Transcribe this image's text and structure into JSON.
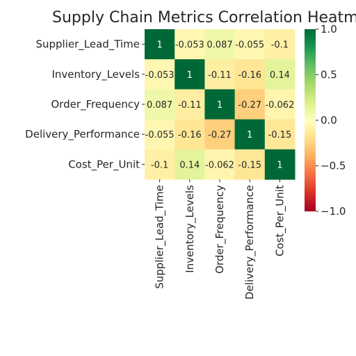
{
  "chart_data": {
    "type": "heatmap",
    "title": "Supply Chain Metrics Correlation Heatmap",
    "x_categories": [
      "Supplier_Lead_Time",
      "Inventory_Levels",
      "Order_Frequency",
      "Delivery_Performance",
      "Cost_Per_Unit"
    ],
    "y_categories": [
      "Supplier_Lead_Time",
      "Inventory_Levels",
      "Order_Frequency",
      "Delivery_Performance",
      "Cost_Per_Unit"
    ],
    "values": [
      [
        1,
        -0.053,
        0.087,
        -0.055,
        -0.1
      ],
      [
        -0.053,
        1,
        -0.11,
        -0.16,
        0.14
      ],
      [
        0.087,
        -0.11,
        1,
        -0.27,
        -0.062
      ],
      [
        -0.055,
        -0.16,
        -0.27,
        1,
        -0.15
      ],
      [
        -0.1,
        0.14,
        -0.062,
        -0.15,
        1
      ]
    ],
    "cell_labels": [
      [
        "1",
        "-0.053",
        "0.087",
        "-0.055",
        "-0.1"
      ],
      [
        "-0.053",
        "1",
        "-0.11",
        "-0.16",
        "0.14"
      ],
      [
        "0.087",
        "-0.11",
        "1",
        "-0.27",
        "-0.062"
      ],
      [
        "-0.055",
        "-0.16",
        "-0.27",
        "1",
        "-0.15"
      ],
      [
        "-0.1",
        "0.14",
        "-0.062",
        "-0.15",
        "1"
      ]
    ],
    "colormap": "RdYlGn",
    "vmin": -1,
    "vmax": 1,
    "colorbar_ticks": [
      1.0,
      0.5,
      0.0,
      -0.5,
      -1.0
    ],
    "colorbar_tick_labels": [
      "1.0",
      "0.5",
      "0.0",
      "−0.5",
      "−1.0"
    ],
    "colorbar_position": "right"
  }
}
